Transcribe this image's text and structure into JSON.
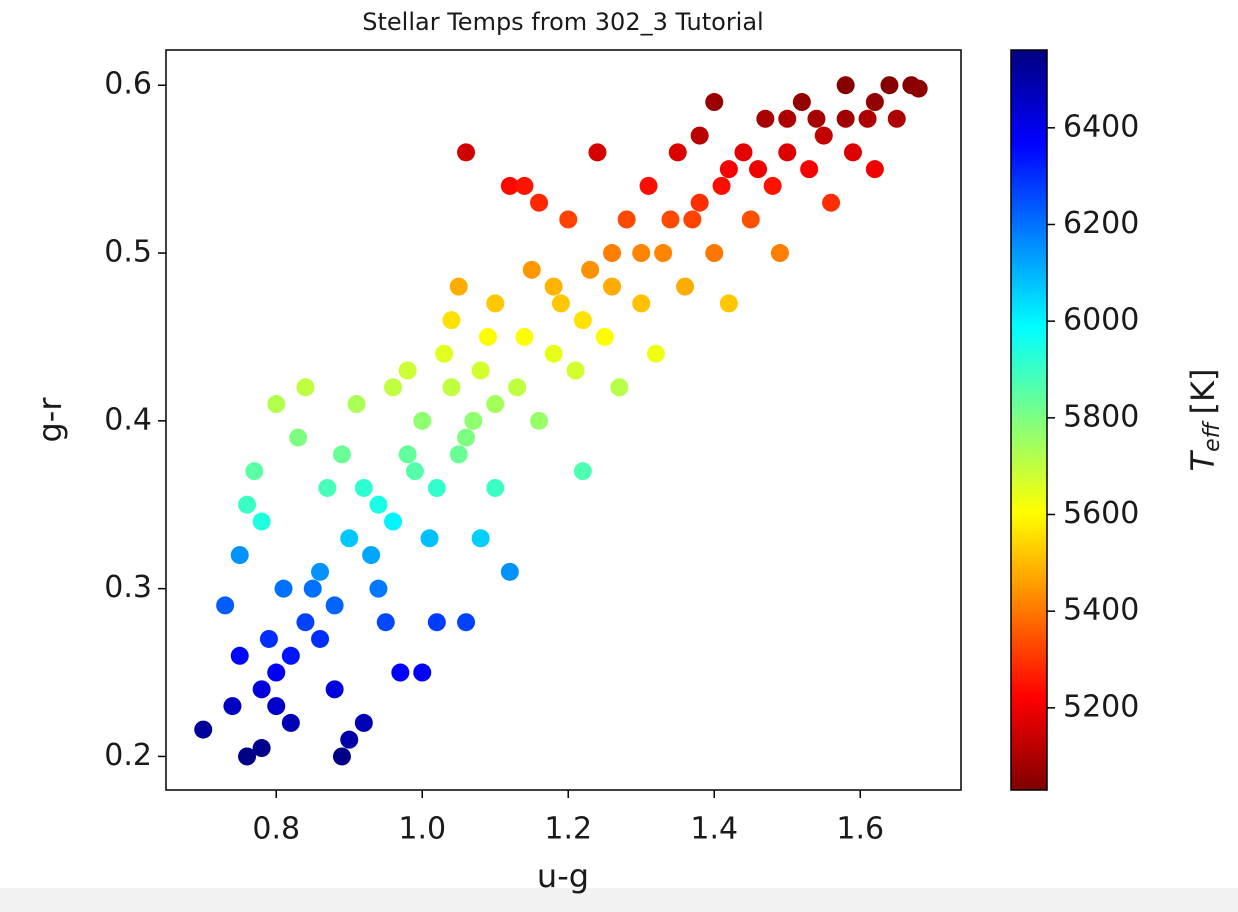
{
  "chart_data": {
    "type": "scatter",
    "title": "Stellar Temps from 302_3 Tutorial",
    "x_label": "u-g",
    "y_label": "g-r",
    "colorbar_label": {
      "symbol": "T",
      "subscript": "eff",
      "unit": "[K]"
    },
    "colormap": "jet_r",
    "xlim": [
      0.649,
      1.738
    ],
    "ylim": [
      0.18,
      0.621
    ],
    "clim": [
      5030,
      6561
    ],
    "xticks": [
      0.8,
      {
        "value": 1,
        "label": "1.0"
      },
      1.2,
      1.4,
      1.6
    ],
    "yticks": [
      0.2,
      0.3,
      0.4,
      0.5,
      0.6
    ],
    "cticks": [
      5200,
      5400,
      5600,
      5800,
      6000,
      6200,
      6400
    ],
    "x": [
      0.7,
      0.73,
      0.75,
      0.76,
      0.78,
      0.8,
      0.77,
      0.76,
      0.78,
      0.8,
      0.82,
      0.84,
      0.83,
      0.85,
      0.86,
      0.88,
      0.89,
      0.9,
      0.87,
      0.89,
      0.91,
      0.92,
      0.93,
      0.94,
      0.95,
      0.96,
      0.97,
      0.98,
      0.99,
      1.0,
      1.01,
      1.02,
      1.03,
      1.04,
      1.05,
      1.06,
      1.05,
      1.06,
      1.07,
      1.08,
      1.09,
      1.1,
      1.1,
      1.12,
      1.12,
      1.13,
      1.14,
      1.15,
      1.16,
      1.16,
      1.18,
      1.19,
      1.2,
      1.21,
      1.22,
      1.23,
      1.24,
      1.25,
      1.26,
      1.27,
      1.28,
      1.3,
      1.31,
      1.32,
      1.33,
      1.35,
      1.36,
      1.37,
      1.38,
      1.4,
      1.4,
      1.41,
      1.42,
      1.44,
      1.45,
      1.47,
      1.48,
      1.49,
      1.5,
      1.52,
      1.53,
      1.55,
      1.56,
      1.58,
      1.59,
      1.61,
      1.62,
      1.64,
      1.65,
      1.67,
      1.68,
      0.8,
      0.82,
      0.84,
      0.86,
      0.88,
      0.9,
      0.92,
      0.94,
      0.96,
      0.98,
      1.0,
      1.02,
      1.04,
      1.06,
      1.08,
      1.1,
      1.14,
      1.18,
      1.22,
      1.26,
      1.3,
      1.34,
      1.38,
      1.42,
      1.46,
      1.5,
      1.54,
      1.58,
      1.62,
      0.79,
      0.81,
      0.78,
      0.75,
      0.74
    ],
    "y": [
      0.216,
      0.29,
      0.32,
      0.2,
      0.205,
      0.41,
      0.37,
      0.35,
      0.34,
      0.25,
      0.22,
      0.42,
      0.39,
      0.3,
      0.27,
      0.24,
      0.2,
      0.21,
      0.36,
      0.38,
      0.41,
      0.22,
      0.32,
      0.35,
      0.28,
      0.42,
      0.25,
      0.43,
      0.37,
      0.25,
      0.33,
      0.28,
      0.44,
      0.46,
      0.48,
      0.56,
      0.38,
      0.28,
      0.4,
      0.33,
      0.45,
      0.47,
      0.36,
      0.54,
      0.31,
      0.42,
      0.54,
      0.49,
      0.4,
      0.53,
      0.44,
      0.47,
      0.52,
      0.43,
      0.37,
      0.49,
      0.56,
      0.45,
      0.5,
      0.42,
      0.52,
      0.47,
      0.54,
      0.44,
      0.5,
      0.56,
      0.48,
      0.52,
      0.57,
      0.5,
      0.59,
      0.54,
      0.47,
      0.56,
      0.52,
      0.58,
      0.54,
      0.5,
      0.56,
      0.59,
      0.55,
      0.57,
      0.53,
      0.6,
      0.56,
      0.58,
      0.55,
      0.6,
      0.58,
      0.6,
      0.598,
      0.23,
      0.26,
      0.28,
      0.31,
      0.29,
      0.33,
      0.36,
      0.3,
      0.34,
      0.38,
      0.4,
      0.36,
      0.42,
      0.39,
      0.43,
      0.41,
      0.45,
      0.48,
      0.46,
      0.48,
      0.5,
      0.52,
      0.53,
      0.55,
      0.55,
      0.58,
      0.58,
      0.58,
      0.59,
      0.27,
      0.3,
      0.24,
      0.26,
      0.23
    ],
    "c": [
      6520,
      6230,
      6150,
      6550,
      6540,
      5720,
      5850,
      5900,
      5940,
      6380,
      6480,
      5700,
      5800,
      6200,
      6300,
      6420,
      6550,
      6500,
      5880,
      5830,
      5730,
      6480,
      6120,
      5950,
      6260,
      5700,
      6370,
      5680,
      5860,
      6380,
      6080,
      6280,
      5650,
      5560,
      5480,
      5150,
      5830,
      6270,
      5770,
      6060,
      5600,
      5520,
      5900,
      5230,
      6150,
      5700,
      5250,
      5450,
      5760,
      5280,
      5640,
      5520,
      5320,
      5670,
      5870,
      5440,
      5160,
      5600,
      5410,
      5710,
      5330,
      5510,
      5240,
      5630,
      5420,
      5170,
      5480,
      5320,
      5120,
      5400,
      5070,
      5240,
      5520,
      5180,
      5340,
      5090,
      5250,
      5410,
      5170,
      5060,
      5210,
      5130,
      5290,
      5040,
      5170,
      5100,
      5200,
      5040,
      5100,
      5040,
      5050,
      6450,
      6340,
      6270,
      6150,
      6220,
      6070,
      5920,
      6190,
      6000,
      5840,
      5770,
      5910,
      5700,
      5800,
      5670,
      5740,
      5600,
      5490,
      5560,
      5480,
      5420,
      5330,
      5290,
      5210,
      5200,
      5100,
      5090,
      5080,
      5060,
      6300,
      6200,
      6420,
      6360,
      6460
    ]
  }
}
